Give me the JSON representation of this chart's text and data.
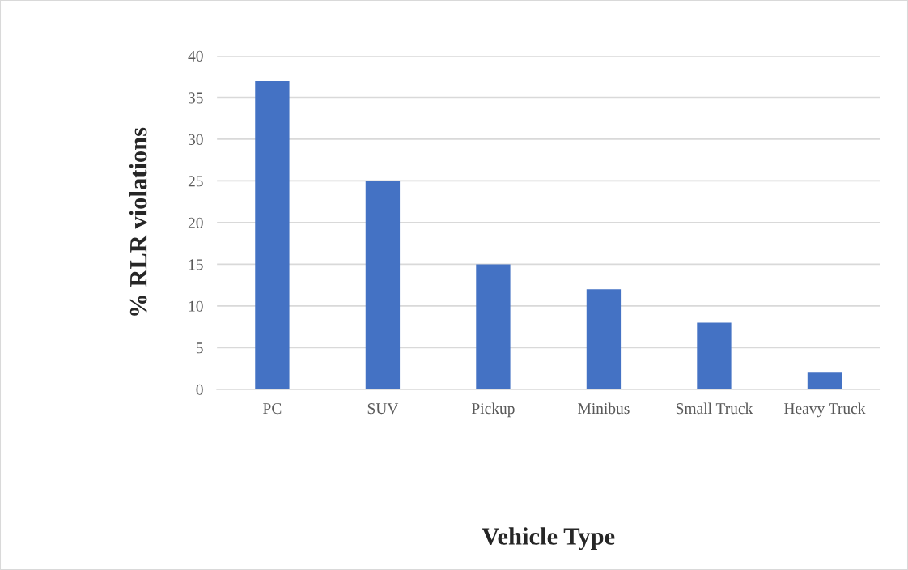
{
  "chart_data": {
    "type": "bar",
    "xlabel": "Vehicle Type",
    "ylabel": "% RLR violations",
    "categories": [
      "PC",
      "SUV",
      "Pickup",
      "Minibus",
      "Small Truck",
      "Heavy Truck"
    ],
    "values": [
      37,
      25,
      15,
      12,
      8,
      2
    ],
    "color": "#4472c4",
    "ylim": [
      0,
      40
    ],
    "yticks": [
      0,
      5,
      10,
      15,
      20,
      25,
      30,
      35,
      40
    ],
    "grid": "y",
    "legend": false
  }
}
